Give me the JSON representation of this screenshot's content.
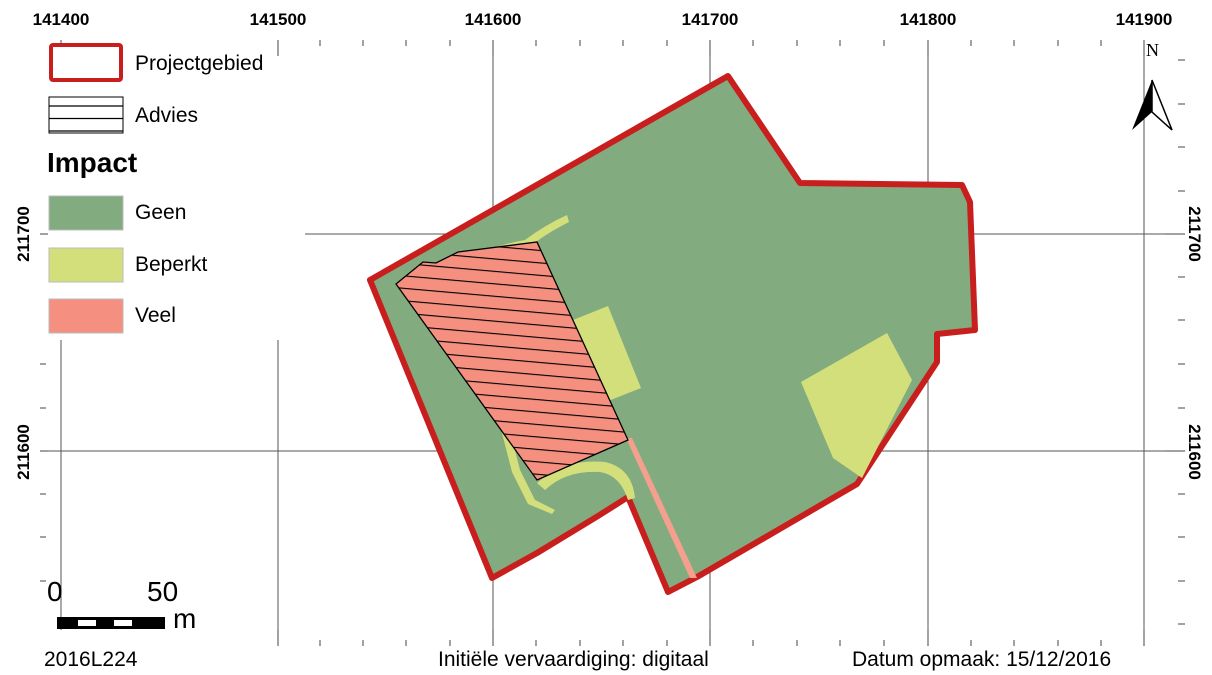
{
  "map": {
    "colors": {
      "geen": "#82ac7f",
      "beperkt": "#d3df7b",
      "veel": "#f58f7f",
      "boundary": "#c81e1e",
      "grid": "#555555"
    },
    "x_labels": [
      "141400",
      "141500",
      "141600",
      "141700",
      "141800",
      "141900"
    ],
    "y_labels_left": [
      "211700",
      "211600"
    ],
    "y_labels_right": [
      "211700",
      "211600"
    ],
    "north_label": "N"
  },
  "legend": {
    "projectgebied": "Projectgebied",
    "advies": "Advies",
    "impact_title": "Impact",
    "geen": "Geen",
    "beperkt": "Beperkt",
    "veel": "Veel"
  },
  "scalebar": {
    "zero": "0",
    "fifty": "50",
    "unit": "m"
  },
  "footer": {
    "code": "2016L224",
    "vervaardiging": "Initiële vervaardiging: digitaal",
    "datum": "Datum opmaak: 15/12/2016"
  }
}
